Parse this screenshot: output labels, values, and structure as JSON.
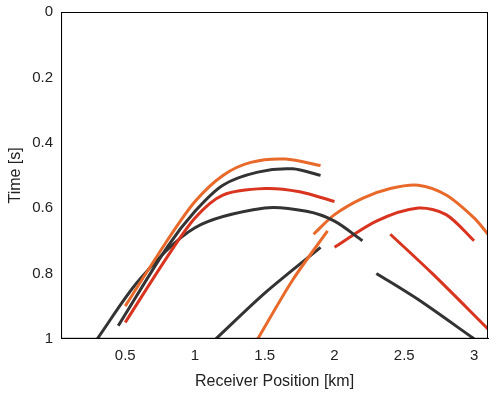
{
  "chart_data": {
    "type": "line",
    "x_label": "Receiver Position [km]",
    "y_label": "Time [s]",
    "xlim": [
      0.04,
      3.1
    ],
    "xticks": [
      0.5,
      1,
      1.5,
      2,
      2.5,
      3
    ],
    "ylim": [
      0,
      1
    ],
    "yticks": [
      0,
      0.2,
      0.4,
      0.6,
      0.8,
      1
    ],
    "grid": false,
    "series": [
      {
        "color": "#e8692a",
        "x": [
          0.5,
          0.8,
          1.0,
          1.2,
          1.4,
          1.65,
          1.9
        ],
        "values": [
          0.9,
          0.7,
          0.58,
          0.5,
          0.46,
          0.45,
          0.47
        ]
      },
      {
        "color": "#333333",
        "x": [
          0.45,
          0.8,
          1.0,
          1.2,
          1.45,
          1.7,
          1.9
        ],
        "values": [
          0.96,
          0.72,
          0.61,
          0.53,
          0.49,
          0.48,
          0.5
        ]
      },
      {
        "color": "#d9341f",
        "x": [
          0.5,
          0.8,
          1.0,
          1.2,
          1.5,
          1.75,
          2.0
        ],
        "values": [
          0.95,
          0.75,
          0.63,
          0.56,
          0.54,
          0.55,
          0.58
        ]
      },
      {
        "color": "#333333",
        "x": [
          0.3,
          0.6,
          1.0,
          1.5,
          1.8,
          2.0,
          2.2
        ],
        "values": [
          1.0,
          0.82,
          0.66,
          0.6,
          0.61,
          0.64,
          0.7
        ]
      },
      {
        "color": "#e8692a",
        "x": [
          1.85,
          2.0,
          2.2,
          2.4,
          2.6,
          2.8,
          3.0,
          3.1
        ],
        "values": [
          0.68,
          0.62,
          0.57,
          0.54,
          0.53,
          0.56,
          0.63,
          0.68
        ]
      },
      {
        "color": "#d9341f",
        "x": [
          2.0,
          2.3,
          2.6,
          2.8,
          3.0
        ],
        "values": [
          0.72,
          0.64,
          0.6,
          0.62,
          0.7
        ]
      },
      {
        "color": "#e8692a",
        "x": [
          1.45,
          1.7,
          1.95
        ],
        "values": [
          1.0,
          0.82,
          0.67
        ]
      },
      {
        "color": "#333333",
        "x": [
          1.15,
          1.5,
          1.9
        ],
        "values": [
          1.0,
          0.86,
          0.72
        ]
      },
      {
        "color": "#d9341f",
        "x": [
          2.4,
          2.7,
          3.1
        ],
        "values": [
          0.68,
          0.8,
          0.97
        ]
      },
      {
        "color": "#333333",
        "x": [
          2.3,
          2.6,
          3.0
        ],
        "values": [
          0.8,
          0.88,
          1.0
        ]
      }
    ]
  }
}
